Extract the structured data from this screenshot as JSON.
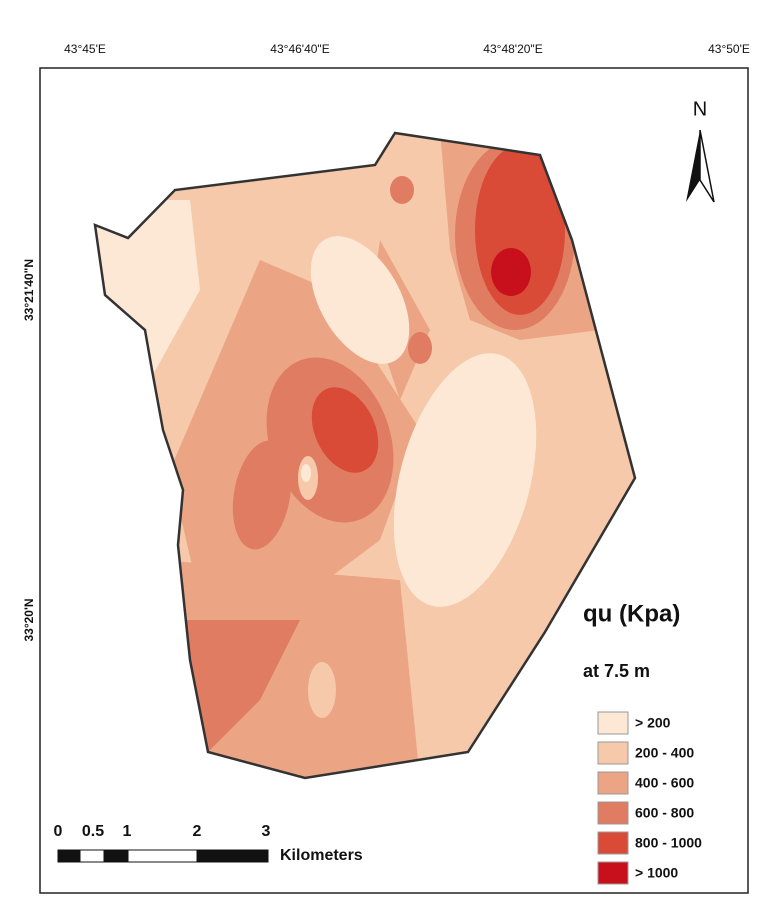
{
  "map": {
    "x_labels": [
      "43°45'E",
      "43°46'40\"E",
      "43°48'20\"E",
      "43°50'E"
    ],
    "y_labels": [
      "33°21'40\"N",
      "33°20'N"
    ],
    "north": "N",
    "legend": {
      "title": "qu (Kpa)",
      "subtitle": "at 7.5 m",
      "items": [
        {
          "label": "> 200",
          "color": "#fde8d6"
        },
        {
          "label": "200 - 400",
          "color": "#f5c9aa"
        },
        {
          "label": "400 - 600",
          "color": "#eba585"
        },
        {
          "label": "600 - 800",
          "color": "#e07c61"
        },
        {
          "label": "800 - 1000",
          "color": "#d94a37"
        },
        {
          "label": "> 1000",
          "color": "#c8101c"
        }
      ]
    },
    "scale_bar": {
      "labels": [
        "0",
        "0.5",
        "1",
        "2",
        "3"
      ],
      "unit": "Kilometers"
    }
  }
}
